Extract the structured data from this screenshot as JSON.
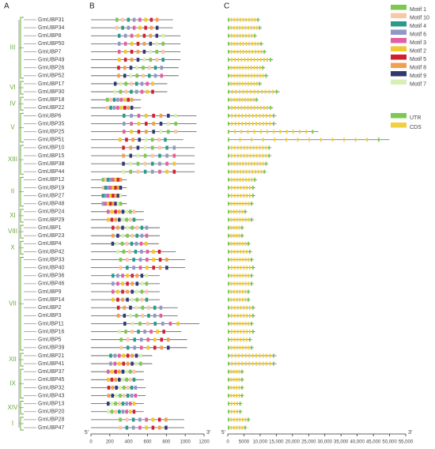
{
  "panels": [
    "A",
    "B",
    "C"
  ],
  "genes": [
    {
      "name": "GmUBP31",
      "protein_length": 870,
      "gene_length": 10000
    },
    {
      "name": "GmUBP34",
      "protein_length": 870,
      "gene_length": 10500
    },
    {
      "name": "GmUBP8",
      "protein_length": 950,
      "gene_length": 9000
    },
    {
      "name": "GmUBP50",
      "protein_length": 950,
      "gene_length": 11000
    },
    {
      "name": "GmUBP7",
      "protein_length": 950,
      "gene_length": 12000
    },
    {
      "name": "GmUBP49",
      "protein_length": 950,
      "gene_length": 14000
    },
    {
      "name": "GmUBP26",
      "protein_length": 930,
      "gene_length": 11500
    },
    {
      "name": "GmUBP52",
      "protein_length": 930,
      "gene_length": 12500
    },
    {
      "name": "GmUBP17",
      "protein_length": 810,
      "gene_length": 10500
    },
    {
      "name": "GmUBP30",
      "protein_length": 810,
      "gene_length": 16000
    },
    {
      "name": "GmUBP18",
      "protein_length": 530,
      "gene_length": 9500
    },
    {
      "name": "GmUBP22",
      "protein_length": 530,
      "gene_length": 14000
    },
    {
      "name": "GmUBP6",
      "protein_length": 1120,
      "gene_length": 15000
    },
    {
      "name": "GmUBP35",
      "protein_length": 1120,
      "gene_length": 15000
    },
    {
      "name": "GmUBP25",
      "protein_length": 1120,
      "gene_length": 28000
    },
    {
      "name": "GmUBP51",
      "protein_length": 980,
      "gene_length": 50000
    },
    {
      "name": "GmUBP10",
      "protein_length": 1100,
      "gene_length": 13500
    },
    {
      "name": "GmUBP15",
      "protein_length": 1100,
      "gene_length": 13500
    },
    {
      "name": "GmUBP38",
      "protein_length": 1100,
      "gene_length": 12500
    },
    {
      "name": "GmUBP44",
      "protein_length": 1100,
      "gene_length": 12000
    },
    {
      "name": "GmUBP12",
      "protein_length": 380,
      "gene_length": 9000
    },
    {
      "name": "GmUBP19",
      "protein_length": 380,
      "gene_length": 8500
    },
    {
      "name": "GmUBP27",
      "protein_length": 380,
      "gene_length": 8500
    },
    {
      "name": "GmUBP48",
      "protein_length": 380,
      "gene_length": 8000
    },
    {
      "name": "GmUBP24",
      "protein_length": 560,
      "gene_length": 6000
    },
    {
      "name": "GmUBP29",
      "protein_length": 560,
      "gene_length": 8000
    },
    {
      "name": "GmUBP1",
      "protein_length": 730,
      "gene_length": 5000
    },
    {
      "name": "GmUBP23",
      "protein_length": 730,
      "gene_length": 5000
    },
    {
      "name": "GmUBP4",
      "protein_length": 720,
      "gene_length": 7000
    },
    {
      "name": "GmUBP42",
      "protein_length": 900,
      "gene_length": 7500
    },
    {
      "name": "GmUBP33",
      "protein_length": 1000,
      "gene_length": 8000
    },
    {
      "name": "GmUBP40",
      "protein_length": 1000,
      "gene_length": 8500
    },
    {
      "name": "GmUBP36",
      "protein_length": 730,
      "gene_length": 8000
    },
    {
      "name": "GmUBP46",
      "protein_length": 730,
      "gene_length": 8000
    },
    {
      "name": "GmUBP9",
      "protein_length": 730,
      "gene_length": 7000
    },
    {
      "name": "GmUBP14",
      "protein_length": 730,
      "gene_length": 7000
    },
    {
      "name": "GmUBP2",
      "protein_length": 920,
      "gene_length": 8500
    },
    {
      "name": "GmUBP3",
      "protein_length": 920,
      "gene_length": 8500
    },
    {
      "name": "GmUBP11",
      "protein_length": 1150,
      "gene_length": 8000
    },
    {
      "name": "GmUBP16",
      "protein_length": 960,
      "gene_length": 8500
    },
    {
      "name": "GmUBP5",
      "protein_length": 1020,
      "gene_length": 7500
    },
    {
      "name": "GmUBP39",
      "protein_length": 1020,
      "gene_length": 8000
    },
    {
      "name": "GmUBP21",
      "protein_length": 650,
      "gene_length": 15000
    },
    {
      "name": "GmUBP41",
      "protein_length": 650,
      "gene_length": 15000
    },
    {
      "name": "GmUBP37",
      "protein_length": 560,
      "gene_length": 5000
    },
    {
      "name": "GmUBP45",
      "protein_length": 560,
      "gene_length": 5000
    },
    {
      "name": "GmUBP32",
      "protein_length": 580,
      "gene_length": 5000
    },
    {
      "name": "GmUBP43",
      "protein_length": 580,
      "gene_length": 5000
    },
    {
      "name": "GmUBP13",
      "protein_length": 560,
      "gene_length": 4500
    },
    {
      "name": "GmUBP20",
      "protein_length": 560,
      "gene_length": 4500
    },
    {
      "name": "GmUBP28",
      "protein_length": 990,
      "gene_length": 7000
    },
    {
      "name": "GmUBP47",
      "protein_length": 990,
      "gene_length": 6000
    }
  ],
  "groups": [
    {
      "label": "III",
      "rows": [
        0,
        7
      ]
    },
    {
      "label": "VI",
      "rows": [
        8,
        9
      ]
    },
    {
      "label": "IV",
      "rows": [
        10,
        11
      ]
    },
    {
      "label": "V",
      "rows": [
        12,
        15
      ]
    },
    {
      "label": "XIII",
      "rows": [
        16,
        19
      ]
    },
    {
      "label": "II",
      "rows": [
        20,
        23
      ]
    },
    {
      "label": "XI",
      "rows": [
        24,
        25
      ]
    },
    {
      "label": "VIII",
      "rows": [
        26,
        27
      ]
    },
    {
      "label": "X",
      "rows": [
        28,
        29
      ]
    },
    {
      "label": "VII",
      "rows": [
        30,
        41
      ]
    },
    {
      "label": "XII",
      "rows": [
        42,
        43
      ]
    },
    {
      "label": "IX",
      "rows": [
        44,
        47
      ]
    },
    {
      "label": "XIV",
      "rows": [
        48,
        49
      ]
    },
    {
      "label": "I",
      "rows": [
        50,
        51
      ]
    }
  ],
  "motif_axis": {
    "xlim": [
      0,
      1200
    ],
    "xticks": [
      0,
      200,
      400,
      600,
      800,
      1000,
      1200
    ],
    "start": "5'",
    "end": "3'"
  },
  "gene_axis": {
    "xlim": [
      0,
      55000
    ],
    "xticks": [
      0,
      5000,
      {
        "value": 10000,
        "label": "10,000"
      },
      {
        "value": 15000,
        "label": "15,000"
      },
      {
        "value": 20000,
        "label": "20,000"
      },
      {
        "value": 25000,
        "label": "25,000"
      },
      {
        "value": 30000,
        "label": "30,000"
      },
      {
        "value": 35000,
        "label": "35,000"
      },
      {
        "value": 40000,
        "label": "40,000"
      },
      {
        "value": 45000,
        "label": "45,000"
      },
      {
        "value": 50000,
        "label": "50,000"
      },
      {
        "value": 55000,
        "label": "55,000"
      }
    ],
    "start": "5'",
    "end": "3'"
  },
  "legend": [
    {
      "name": "Motif 1",
      "color": "#7ec850"
    },
    {
      "name": "Motif 10",
      "color": "#f8c8a8"
    },
    {
      "name": "Motif 4",
      "color": "#2a9a8a"
    },
    {
      "name": "Motif 6",
      "color": "#9098c8"
    },
    {
      "name": "Motif 3",
      "color": "#e060a0"
    },
    {
      "name": "Motif 2",
      "color": "#f0c830"
    },
    {
      "name": "Motif 5",
      "color": "#d02030"
    },
    {
      "name": "Motif 8",
      "color": "#f0a050"
    },
    {
      "name": "Motif 9",
      "color": "#303870"
    },
    {
      "name": "Motif 7",
      "color": "#d8f0b8"
    }
  ],
  "structure_legend": [
    {
      "name": "UTR",
      "color": "#7ec850"
    },
    {
      "name": "CDS",
      "color": "#f0d040"
    }
  ]
}
